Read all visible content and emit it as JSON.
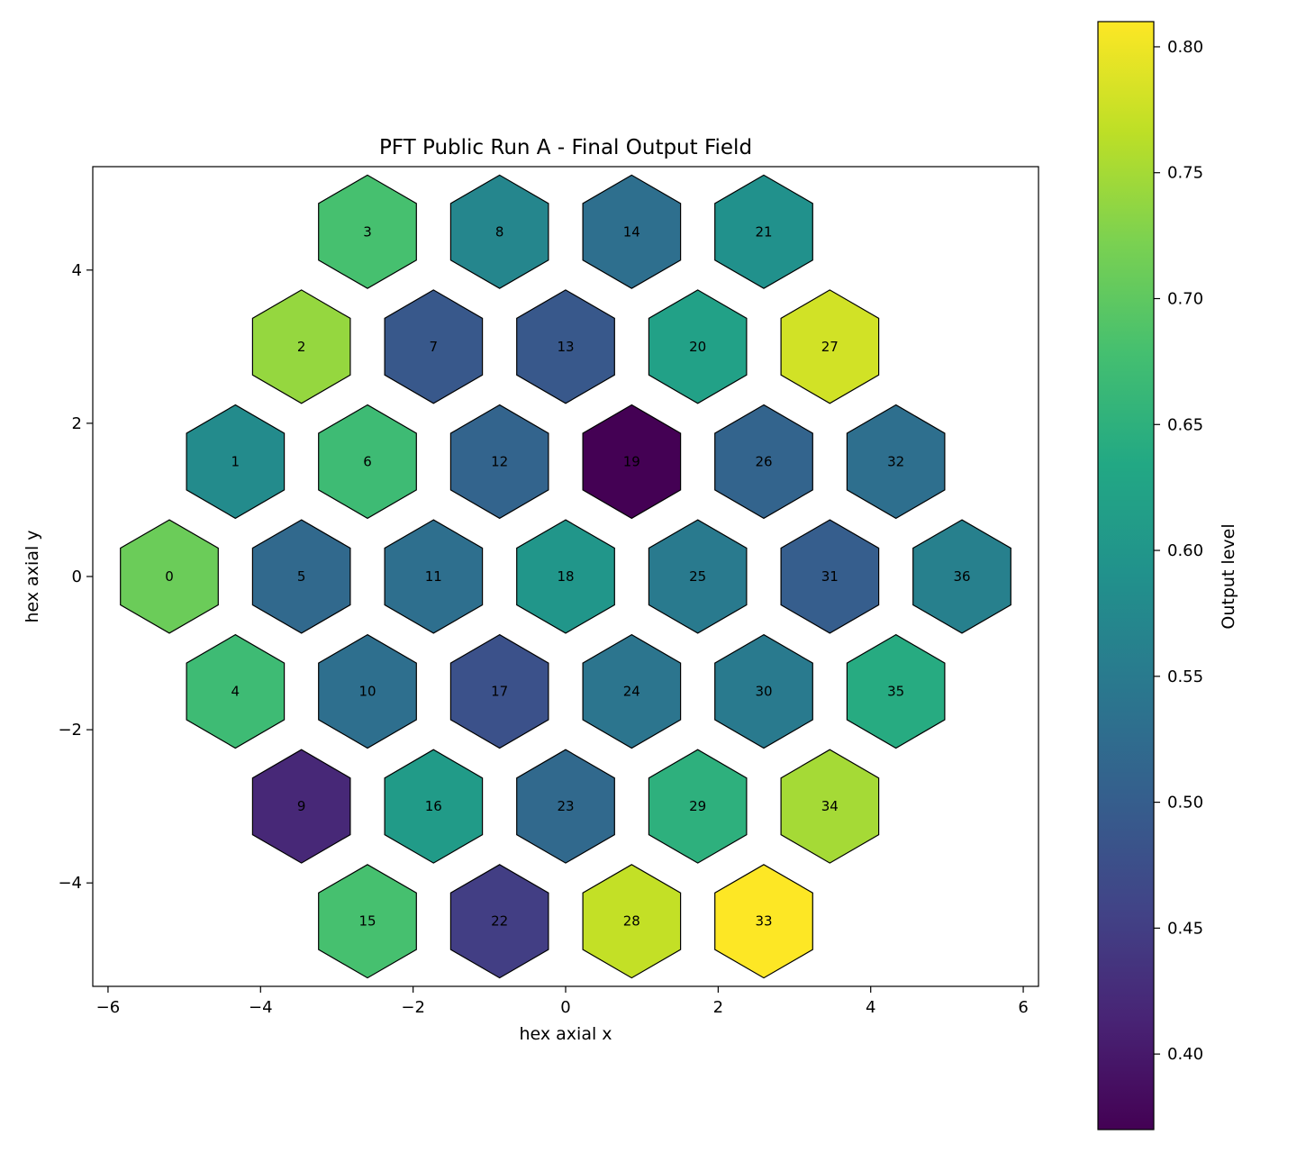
{
  "chart_data": {
    "type": "heatmap",
    "title": "PFT Public Run A - Final Output Field",
    "xlabel": "hex axial x",
    "ylabel": "hex axial y",
    "xlim": [
      -6.2,
      6.2
    ],
    "ylim": [
      -5.35,
      5.35
    ],
    "xticks": [
      -6,
      -4,
      -2,
      0,
      2,
      4,
      6
    ],
    "yticks": [
      -4,
      -2,
      0,
      2,
      4
    ],
    "colorbar": {
      "label": "Output level",
      "colormap": "viridis",
      "range": [
        0.37,
        0.81
      ],
      "ticks": [
        0.4,
        0.45,
        0.5,
        0.55,
        0.6,
        0.65,
        0.7,
        0.75,
        0.8
      ]
    },
    "edge_color": "#000000",
    "cells": [
      {
        "id": "0",
        "x": -5.196,
        "y": 0.0,
        "value": 0.71
      },
      {
        "id": "1",
        "x": -4.33,
        "y": 1.5,
        "value": 0.58
      },
      {
        "id": "2",
        "x": -3.464,
        "y": 3.0,
        "value": 0.74
      },
      {
        "id": "3",
        "x": -2.598,
        "y": 4.5,
        "value": 0.68
      },
      {
        "id": "4",
        "x": -4.33,
        "y": -1.5,
        "value": 0.67
      },
      {
        "id": "5",
        "x": -3.464,
        "y": 0.0,
        "value": 0.52
      },
      {
        "id": "6",
        "x": -2.598,
        "y": 1.5,
        "value": 0.67
      },
      {
        "id": "7",
        "x": -1.732,
        "y": 3.0,
        "value": 0.49
      },
      {
        "id": "8",
        "x": -0.866,
        "y": 4.5,
        "value": 0.57
      },
      {
        "id": "9",
        "x": -3.464,
        "y": -3.0,
        "value": 0.42
      },
      {
        "id": "10",
        "x": -2.598,
        "y": -1.5,
        "value": 0.53
      },
      {
        "id": "11",
        "x": -1.732,
        "y": 0.0,
        "value": 0.53
      },
      {
        "id": "12",
        "x": -0.866,
        "y": 1.5,
        "value": 0.51
      },
      {
        "id": "13",
        "x": 0.0,
        "y": 3.0,
        "value": 0.49
      },
      {
        "id": "14",
        "x": 0.866,
        "y": 4.5,
        "value": 0.53
      },
      {
        "id": "15",
        "x": -2.598,
        "y": -4.5,
        "value": 0.68
      },
      {
        "id": "16",
        "x": -1.732,
        "y": -3.0,
        "value": 0.61
      },
      {
        "id": "17",
        "x": -0.866,
        "y": -1.5,
        "value": 0.48
      },
      {
        "id": "18",
        "x": 0.0,
        "y": 0.0,
        "value": 0.6
      },
      {
        "id": "19",
        "x": 0.866,
        "y": 1.5,
        "value": 0.37
      },
      {
        "id": "20",
        "x": 1.732,
        "y": 3.0,
        "value": 0.62
      },
      {
        "id": "21",
        "x": 2.598,
        "y": 4.5,
        "value": 0.59
      },
      {
        "id": "22",
        "x": -0.866,
        "y": -4.5,
        "value": 0.45
      },
      {
        "id": "23",
        "x": 0.0,
        "y": -3.0,
        "value": 0.52
      },
      {
        "id": "24",
        "x": 0.866,
        "y": -1.5,
        "value": 0.54
      },
      {
        "id": "25",
        "x": 1.732,
        "y": 0.0,
        "value": 0.55
      },
      {
        "id": "26",
        "x": 2.598,
        "y": 1.5,
        "value": 0.51
      },
      {
        "id": "27",
        "x": 3.464,
        "y": 3.0,
        "value": 0.78
      },
      {
        "id": "28",
        "x": 0.866,
        "y": -4.5,
        "value": 0.77
      },
      {
        "id": "29",
        "x": 1.732,
        "y": -3.0,
        "value": 0.65
      },
      {
        "id": "30",
        "x": 2.598,
        "y": -1.5,
        "value": 0.55
      },
      {
        "id": "31",
        "x": 3.464,
        "y": 0.0,
        "value": 0.5
      },
      {
        "id": "32",
        "x": 4.33,
        "y": 1.5,
        "value": 0.53
      },
      {
        "id": "33",
        "x": 2.598,
        "y": -4.5,
        "value": 0.81
      },
      {
        "id": "34",
        "x": 3.464,
        "y": -3.0,
        "value": 0.75
      },
      {
        "id": "35",
        "x": 4.33,
        "y": -1.5,
        "value": 0.64
      },
      {
        "id": "36",
        "x": 5.196,
        "y": 0.0,
        "value": 0.56
      }
    ]
  }
}
